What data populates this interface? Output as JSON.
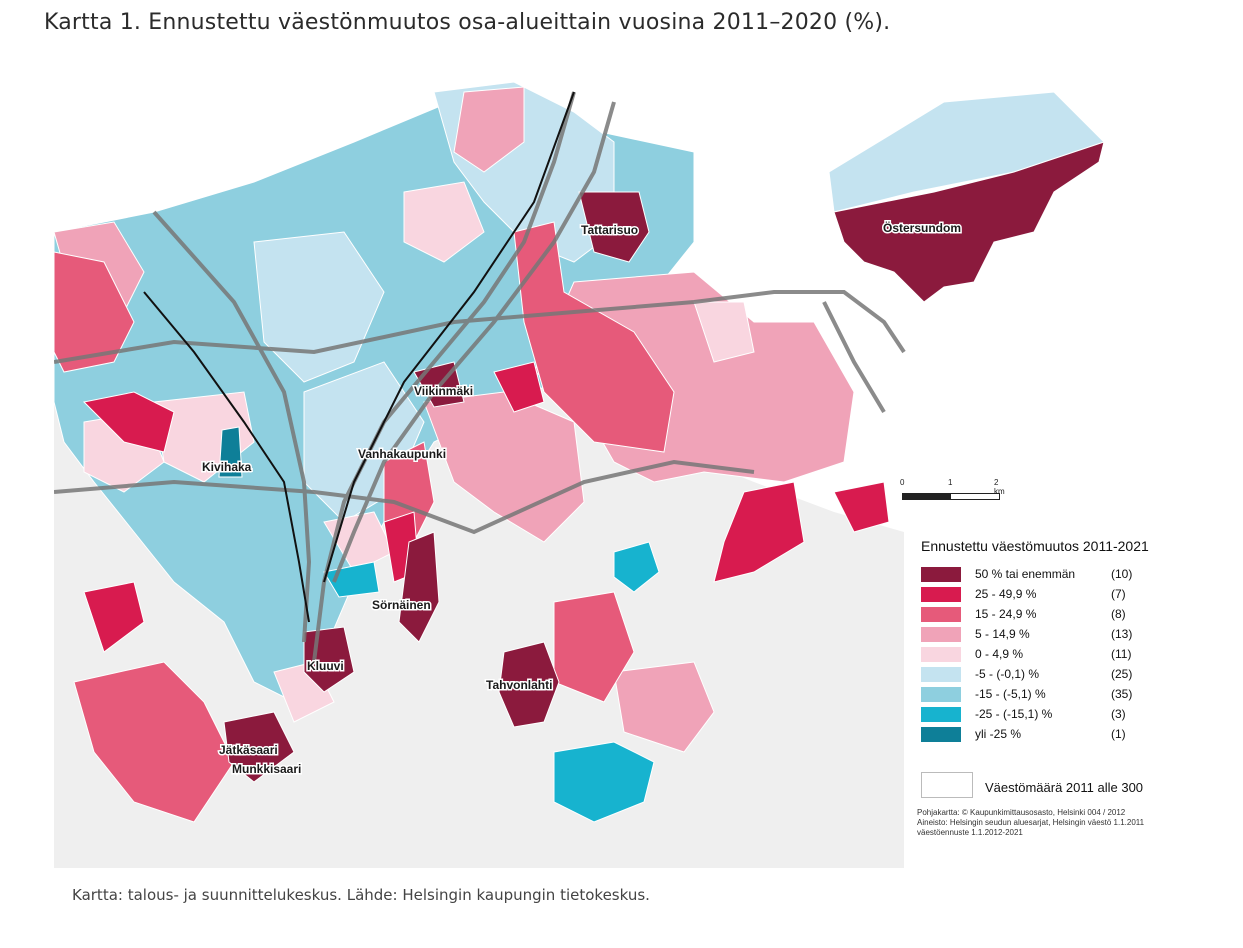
{
  "title": "Kartta 1.  Ennustettu väestönmuutos osa-alueittain vuosina 2011–2020 (%).",
  "caption": "Kartta: talous- ja suunnittelukeskus. Lähde: Helsingin kaupungin tietokeskus.",
  "colors": {
    "cat1": "#8b1a3d",
    "cat2": "#d81b4f",
    "cat3": "#e65a7a",
    "cat4": "#f0a3b8",
    "cat5": "#f9d6e0",
    "cat6": "#c4e3f0",
    "cat7": "#8ecfdf",
    "cat8": "#17b3cf",
    "cat9": "#0e7f98",
    "land": "#efefef",
    "roads": "#777777"
  },
  "places": {
    "tattarisuo": "Tattarisuo",
    "ostersundom": "Östersundom",
    "viikinmaki": "Viikinmäki",
    "vanhakaupunki": "Vanhakaupunki",
    "kivihaka": "Kivihaka",
    "sornainen": "Sörnäinen",
    "kluuvi": "Kluuvi",
    "tahvonlahti": "Tahvonlahti",
    "jatkasaari": "Jätkäsaari",
    "munkkisaari": "Munkkisaari"
  },
  "scale": {
    "zero": "0",
    "one": "1",
    "two": "2 km"
  },
  "legend": {
    "title": "Ennustettu väestömuutos 2011-2021",
    "rows": [
      {
        "label": "50 % tai enemmän",
        "count": "(10)"
      },
      {
        "label": "25 - 49,9 %",
        "count": "(7)"
      },
      {
        "label": "15 - 24,9 %",
        "count": "(8)"
      },
      {
        "label": "5 - 14,9 %",
        "count": "(13)"
      },
      {
        "label": "0 - 4,9 %",
        "count": "(11)"
      },
      {
        "label": "-5 - (-0,1) %",
        "count": "(25)"
      },
      {
        "label": "-15 - (-5,1) %",
        "count": "(35)"
      },
      {
        "label": "-25 - (-15,1) %",
        "count": "(3)"
      },
      {
        "label": "yli -25 %",
        "count": "(1)"
      }
    ],
    "population_note": "Väestömäärä 2011 alle 300",
    "credit_1": "Pohjakartta: © Kaupunkimittausosasto, Helsinki  004 / 2012",
    "credit_2": "Aineisto: Helsingin seudun aluesarjat, Helsingin väestö 1.1.2011",
    "credit_3": "väestöennuste 1.1.2012-2021"
  }
}
